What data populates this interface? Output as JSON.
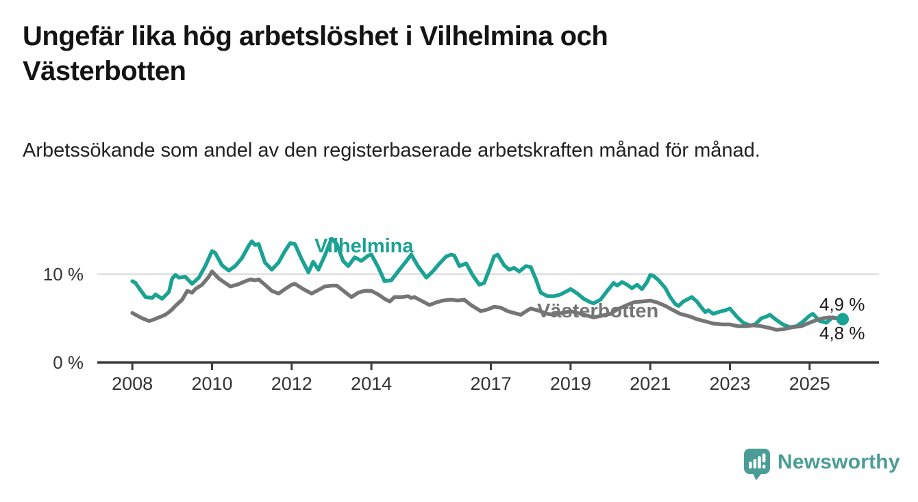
{
  "header": {
    "title": "Ungefär lika hög arbetslöshet i Vilhelmina och Västerbotten",
    "subtitle": "Arbetssökande som andel av den registerbaserade arbetskraften månad för månad."
  },
  "chart_data": {
    "type": "line",
    "x_unit": "decimal year (monthly data)",
    "xlim": [
      2007.12,
      2026.74
    ],
    "ylim": [
      0,
      14.7
    ],
    "grid": "horizontal line at 10 % only",
    "legend_position": "labels drawn on lines",
    "y_ticks": [
      {
        "value": 0,
        "label": "0 %"
      },
      {
        "value": 10,
        "label": "10 %"
      }
    ],
    "x_ticks": [
      {
        "value": 2008,
        "label": "2008"
      },
      {
        "value": 2010,
        "label": "2010"
      },
      {
        "value": 2012,
        "label": "2012"
      },
      {
        "value": 2014,
        "label": "2014"
      },
      {
        "value": 2017,
        "label": "2017"
      },
      {
        "value": 2019,
        "label": "2019"
      },
      {
        "value": 2021,
        "label": "2021"
      },
      {
        "value": 2023,
        "label": "2023"
      },
      {
        "value": 2025,
        "label": "2025"
      }
    ],
    "series": [
      {
        "name": "Vilhelmina",
        "color": "#1aa294",
        "end_label": "4,9 %",
        "end_value": 4.9,
        "end_dot": true,
        "points": [
          [
            2008.0,
            9.2
          ],
          [
            2008.08,
            9.0
          ],
          [
            2008.17,
            8.4
          ],
          [
            2008.33,
            7.4
          ],
          [
            2008.5,
            7.3
          ],
          [
            2008.58,
            7.7
          ],
          [
            2008.75,
            7.2
          ],
          [
            2008.92,
            8.0
          ],
          [
            2009.0,
            9.5
          ],
          [
            2009.08,
            9.9
          ],
          [
            2009.17,
            9.6
          ],
          [
            2009.33,
            9.7
          ],
          [
            2009.5,
            8.9
          ],
          [
            2009.67,
            9.6
          ],
          [
            2009.83,
            10.9
          ],
          [
            2010.0,
            12.6
          ],
          [
            2010.08,
            12.4
          ],
          [
            2010.25,
            11.0
          ],
          [
            2010.42,
            10.4
          ],
          [
            2010.58,
            10.9
          ],
          [
            2010.75,
            11.8
          ],
          [
            2010.92,
            13.2
          ],
          [
            2011.0,
            13.7
          ],
          [
            2011.08,
            13.3
          ],
          [
            2011.17,
            13.4
          ],
          [
            2011.33,
            11.3
          ],
          [
            2011.5,
            10.5
          ],
          [
            2011.67,
            11.3
          ],
          [
            2011.83,
            12.6
          ],
          [
            2011.96,
            13.5
          ],
          [
            2012.08,
            13.4
          ],
          [
            2012.25,
            11.7
          ],
          [
            2012.42,
            10.2
          ],
          [
            2012.54,
            11.4
          ],
          [
            2012.67,
            10.5
          ],
          [
            2012.83,
            12.1
          ],
          [
            2013.0,
            14.0
          ],
          [
            2013.13,
            13.4
          ],
          [
            2013.29,
            11.5
          ],
          [
            2013.42,
            10.9
          ],
          [
            2013.58,
            11.9
          ],
          [
            2013.75,
            11.5
          ],
          [
            2013.92,
            12.1
          ],
          [
            2014.0,
            12.2
          ],
          [
            2014.17,
            10.8
          ],
          [
            2014.33,
            9.2
          ],
          [
            2014.5,
            9.3
          ],
          [
            2014.67,
            10.3
          ],
          [
            2014.83,
            11.2
          ],
          [
            2015.0,
            12.2
          ],
          [
            2015.17,
            10.9
          ],
          [
            2015.38,
            9.6
          ],
          [
            2015.54,
            10.3
          ],
          [
            2015.71,
            11.2
          ],
          [
            2015.88,
            12.0
          ],
          [
            2016.0,
            12.2
          ],
          [
            2016.08,
            12.1
          ],
          [
            2016.21,
            10.9
          ],
          [
            2016.38,
            11.2
          ],
          [
            2016.54,
            9.9
          ],
          [
            2016.71,
            8.8
          ],
          [
            2016.83,
            9.0
          ],
          [
            2016.96,
            10.5
          ],
          [
            2017.08,
            12.0
          ],
          [
            2017.17,
            12.2
          ],
          [
            2017.33,
            11.0
          ],
          [
            2017.46,
            10.5
          ],
          [
            2017.58,
            10.7
          ],
          [
            2017.71,
            10.3
          ],
          [
            2017.88,
            10.9
          ],
          [
            2018.0,
            10.8
          ],
          [
            2018.13,
            9.4
          ],
          [
            2018.25,
            7.9
          ],
          [
            2018.42,
            7.5
          ],
          [
            2018.58,
            7.5
          ],
          [
            2018.75,
            7.7
          ],
          [
            2018.92,
            8.1
          ],
          [
            2019.0,
            8.3
          ],
          [
            2019.17,
            7.8
          ],
          [
            2019.33,
            7.2
          ],
          [
            2019.5,
            6.8
          ],
          [
            2019.58,
            6.7
          ],
          [
            2019.75,
            7.1
          ],
          [
            2019.92,
            8.1
          ],
          [
            2020.08,
            9.0
          ],
          [
            2020.17,
            8.7
          ],
          [
            2020.29,
            9.1
          ],
          [
            2020.42,
            8.8
          ],
          [
            2020.54,
            8.4
          ],
          [
            2020.67,
            8.8
          ],
          [
            2020.79,
            8.3
          ],
          [
            2020.92,
            9.1
          ],
          [
            2021.0,
            9.9
          ],
          [
            2021.08,
            9.8
          ],
          [
            2021.21,
            9.3
          ],
          [
            2021.38,
            8.4
          ],
          [
            2021.5,
            7.4
          ],
          [
            2021.63,
            6.6
          ],
          [
            2021.71,
            6.4
          ],
          [
            2021.83,
            6.9
          ],
          [
            2021.96,
            7.2
          ],
          [
            2022.04,
            7.4
          ],
          [
            2022.17,
            6.9
          ],
          [
            2022.29,
            6.2
          ],
          [
            2022.38,
            5.7
          ],
          [
            2022.46,
            5.9
          ],
          [
            2022.58,
            5.5
          ],
          [
            2022.71,
            5.7
          ],
          [
            2022.88,
            5.9
          ],
          [
            2023.0,
            6.1
          ],
          [
            2023.17,
            5.2
          ],
          [
            2023.33,
            4.5
          ],
          [
            2023.5,
            4.2
          ],
          [
            2023.63,
            4.3
          ],
          [
            2023.79,
            5.0
          ],
          [
            2023.92,
            5.2
          ],
          [
            2024.0,
            5.4
          ],
          [
            2024.17,
            4.8
          ],
          [
            2024.33,
            4.3
          ],
          [
            2024.5,
            4.0
          ],
          [
            2024.67,
            4.1
          ],
          [
            2024.83,
            4.6
          ],
          [
            2025.0,
            5.3
          ],
          [
            2025.08,
            5.5
          ],
          [
            2025.25,
            4.7
          ],
          [
            2025.42,
            4.5
          ],
          [
            2025.58,
            5.1
          ],
          [
            2025.71,
            5.0
          ],
          [
            2025.83,
            4.9
          ]
        ]
      },
      {
        "name": "Västerbotten",
        "color": "#757575",
        "end_label": "4,8 %",
        "end_value": 4.8,
        "end_dot": false,
        "points": [
          [
            2008.0,
            5.6
          ],
          [
            2008.08,
            5.4
          ],
          [
            2008.25,
            5.0
          ],
          [
            2008.42,
            4.7
          ],
          [
            2008.5,
            4.8
          ],
          [
            2008.67,
            5.1
          ],
          [
            2008.83,
            5.4
          ],
          [
            2008.92,
            5.7
          ],
          [
            2009.0,
            6.0
          ],
          [
            2009.08,
            6.4
          ],
          [
            2009.25,
            7.1
          ],
          [
            2009.38,
            8.1
          ],
          [
            2009.5,
            7.9
          ],
          [
            2009.58,
            8.3
          ],
          [
            2009.75,
            8.8
          ],
          [
            2009.92,
            9.7
          ],
          [
            2010.0,
            10.3
          ],
          [
            2010.17,
            9.5
          ],
          [
            2010.33,
            9.0
          ],
          [
            2010.46,
            8.6
          ],
          [
            2010.63,
            8.8
          ],
          [
            2010.79,
            9.1
          ],
          [
            2010.96,
            9.4
          ],
          [
            2011.08,
            9.3
          ],
          [
            2011.17,
            9.4
          ],
          [
            2011.33,
            8.8
          ],
          [
            2011.5,
            8.1
          ],
          [
            2011.67,
            7.8
          ],
          [
            2011.83,
            8.3
          ],
          [
            2012.0,
            8.8
          ],
          [
            2012.08,
            8.9
          ],
          [
            2012.29,
            8.3
          ],
          [
            2012.5,
            7.8
          ],
          [
            2012.67,
            8.2
          ],
          [
            2012.83,
            8.6
          ],
          [
            2013.0,
            8.7
          ],
          [
            2013.13,
            8.7
          ],
          [
            2013.33,
            8.0
          ],
          [
            2013.5,
            7.4
          ],
          [
            2013.67,
            7.9
          ],
          [
            2013.83,
            8.1
          ],
          [
            2014.0,
            8.1
          ],
          [
            2014.17,
            7.7
          ],
          [
            2014.33,
            7.2
          ],
          [
            2014.46,
            6.9
          ],
          [
            2014.58,
            7.4
          ],
          [
            2014.75,
            7.4
          ],
          [
            2014.92,
            7.5
          ],
          [
            2015.0,
            7.3
          ],
          [
            2015.08,
            7.4
          ],
          [
            2015.29,
            6.9
          ],
          [
            2015.46,
            6.5
          ],
          [
            2015.63,
            6.8
          ],
          [
            2015.79,
            7.0
          ],
          [
            2016.0,
            7.1
          ],
          [
            2016.17,
            7.0
          ],
          [
            2016.33,
            7.1
          ],
          [
            2016.5,
            6.5
          ],
          [
            2016.75,
            5.8
          ],
          [
            2016.92,
            6.0
          ],
          [
            2017.08,
            6.3
          ],
          [
            2017.25,
            6.2
          ],
          [
            2017.42,
            5.8
          ],
          [
            2017.58,
            5.6
          ],
          [
            2017.75,
            5.4
          ],
          [
            2017.92,
            5.9
          ],
          [
            2018.0,
            6.1
          ],
          [
            2018.17,
            5.9
          ],
          [
            2018.42,
            5.5
          ],
          [
            2018.58,
            5.4
          ],
          [
            2018.79,
            5.6
          ],
          [
            2019.0,
            5.8
          ],
          [
            2019.17,
            5.6
          ],
          [
            2019.42,
            5.3
          ],
          [
            2019.58,
            5.1
          ],
          [
            2019.79,
            5.3
          ],
          [
            2020.0,
            5.5
          ],
          [
            2020.17,
            6.0
          ],
          [
            2020.42,
            6.5
          ],
          [
            2020.58,
            6.8
          ],
          [
            2020.79,
            6.9
          ],
          [
            2021.0,
            7.0
          ],
          [
            2021.17,
            6.8
          ],
          [
            2021.38,
            6.4
          ],
          [
            2021.58,
            5.9
          ],
          [
            2021.75,
            5.5
          ],
          [
            2021.92,
            5.3
          ],
          [
            2022.0,
            5.2
          ],
          [
            2022.17,
            4.9
          ],
          [
            2022.42,
            4.6
          ],
          [
            2022.58,
            4.4
          ],
          [
            2022.79,
            4.3
          ],
          [
            2023.0,
            4.3
          ],
          [
            2023.21,
            4.1
          ],
          [
            2023.42,
            4.1
          ],
          [
            2023.58,
            4.2
          ],
          [
            2023.79,
            4.1
          ],
          [
            2024.0,
            3.9
          ],
          [
            2024.17,
            3.7
          ],
          [
            2024.38,
            3.8
          ],
          [
            2024.58,
            4.0
          ],
          [
            2024.79,
            4.1
          ],
          [
            2025.0,
            4.5
          ],
          [
            2025.17,
            4.8
          ],
          [
            2025.33,
            5.0
          ],
          [
            2025.5,
            5.1
          ],
          [
            2025.67,
            5.0
          ],
          [
            2025.83,
            4.8
          ]
        ]
      }
    ]
  },
  "footer": {
    "brand": "Newsworthy",
    "brand_color": "#4a9d96",
    "logo_icon": "bar-chart-speech-bubble-icon"
  }
}
